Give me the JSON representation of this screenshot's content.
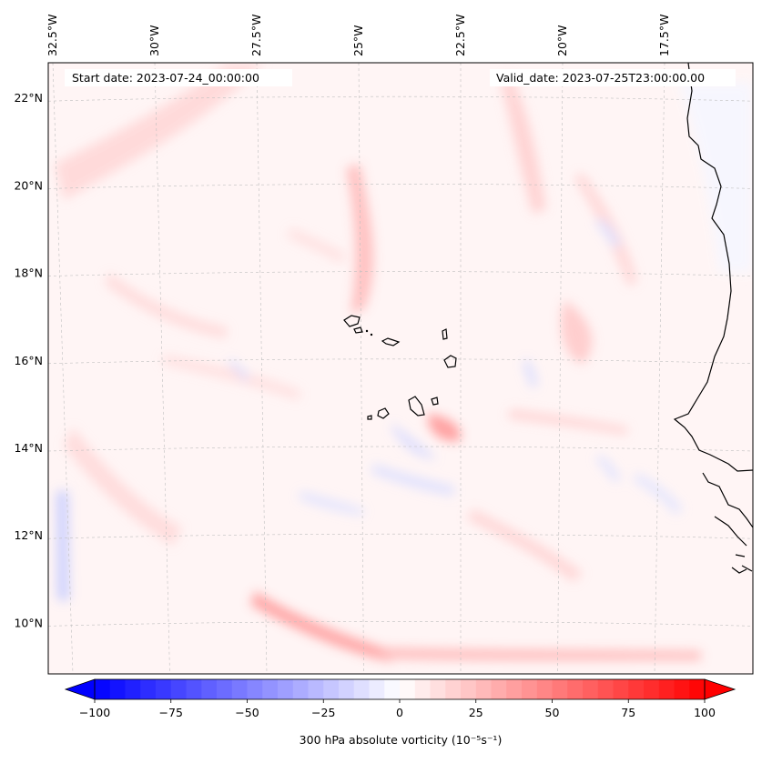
{
  "header": {
    "start_date": "Start date: 2023-07-24_00:00:00",
    "valid_date": "Valid_date: 2023-07-25T23:00:00.00"
  },
  "lon_labels": [
    {
      "text": "32.5°W",
      "lon": -32.5
    },
    {
      "text": "30°W",
      "lon": -30
    },
    {
      "text": "27.5°W",
      "lon": -27.5
    },
    {
      "text": "25°W",
      "lon": -25
    },
    {
      "text": "22.5°W",
      "lon": -22.5
    },
    {
      "text": "20°W",
      "lon": -20
    },
    {
      "text": "17.5°W",
      "lon": -17.5
    }
  ],
  "lat_labels": [
    {
      "text": "22°N",
      "lat": 22
    },
    {
      "text": "20°N",
      "lat": 20
    },
    {
      "text": "18°N",
      "lat": 18
    },
    {
      "text": "16°N",
      "lat": 16
    },
    {
      "text": "14°N",
      "lat": 14
    },
    {
      "text": "12°N",
      "lat": 12
    },
    {
      "text": "10°N",
      "lat": 10
    }
  ],
  "colorbar": {
    "min": -100,
    "max": 100,
    "ticks": [
      {
        "value": -100,
        "label": "−100"
      },
      {
        "value": -75,
        "label": "−75"
      },
      {
        "value": -50,
        "label": "−50"
      },
      {
        "value": -25,
        "label": "−25"
      },
      {
        "value": 0,
        "label": "0"
      },
      {
        "value": 25,
        "label": "25"
      },
      {
        "value": 50,
        "label": "50"
      },
      {
        "value": 75,
        "label": "75"
      },
      {
        "value": 100,
        "label": "100"
      }
    ],
    "title": "300 hPa absolute vorticity (10⁻⁵s⁻¹)",
    "neg_color": "#0000ff",
    "pos_color": "#ff0000",
    "mid_color": "#ffffff"
  },
  "map": {
    "extent_lon": [
      -33.0,
      -16.0
    ],
    "extent_lat": [
      8.9,
      22.8
    ],
    "gridlines": true
  }
}
